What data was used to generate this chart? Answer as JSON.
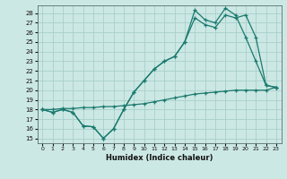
{
  "xlabel": "Humidex (Indice chaleur)",
  "background_color": "#cce8e4",
  "grid_color": "#a8d0cc",
  "line_color": "#1a7a6e",
  "xlim": [
    -0.5,
    23.5
  ],
  "ylim": [
    14.5,
    28.8
  ],
  "xticks": [
    0,
    1,
    2,
    3,
    4,
    5,
    6,
    7,
    8,
    9,
    10,
    11,
    12,
    13,
    14,
    15,
    16,
    17,
    18,
    19,
    20,
    21,
    22,
    23
  ],
  "yticks": [
    15,
    16,
    17,
    18,
    19,
    20,
    21,
    22,
    23,
    24,
    25,
    26,
    27,
    28
  ],
  "line1_y": [
    18.0,
    17.7,
    18.0,
    17.7,
    16.3,
    16.2,
    15.0,
    16.0,
    18.0,
    19.8,
    21.0,
    22.2,
    23.0,
    23.5,
    25.0,
    28.3,
    27.3,
    27.0,
    28.5,
    27.8,
    25.5,
    23.0,
    20.5,
    20.3
  ],
  "line2_y": [
    18.0,
    17.7,
    18.0,
    17.7,
    16.3,
    16.2,
    15.0,
    16.0,
    18.0,
    19.8,
    21.0,
    22.2,
    23.0,
    23.5,
    25.0,
    27.5,
    26.8,
    26.5,
    27.8,
    27.5,
    27.8,
    25.5,
    20.5,
    20.3
  ],
  "line3_y": [
    18.0,
    18.0,
    18.1,
    18.1,
    18.2,
    18.2,
    18.3,
    18.3,
    18.4,
    18.5,
    18.6,
    18.8,
    19.0,
    19.2,
    19.4,
    19.6,
    19.7,
    19.8,
    19.9,
    20.0,
    20.0,
    20.0,
    20.0,
    20.3
  ]
}
